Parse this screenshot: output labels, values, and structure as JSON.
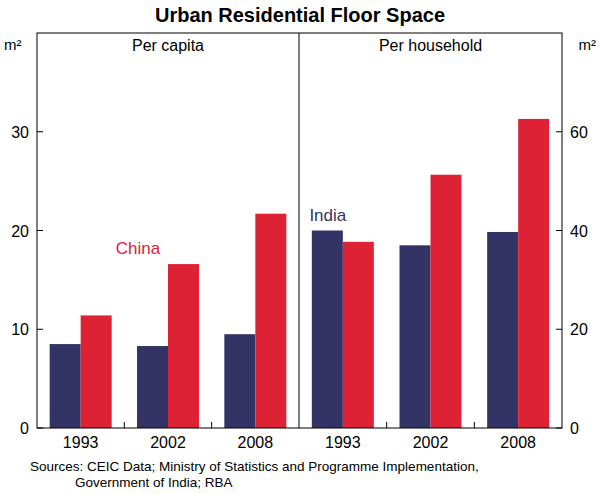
{
  "title": "Urban Residential Floor Space",
  "source": [
    "Sources: CEIC Data; Ministry of Statistics and Programme Implementation,",
    "Government of India; RBA"
  ],
  "chart_data": [
    {
      "type": "bar",
      "title": "Per capita",
      "y_label": "m²",
      "categories": [
        "1993",
        "2002",
        "2008"
      ],
      "series": [
        {
          "color": "#333366",
          "values": [
            8.5,
            8.3,
            9.5
          ]
        },
        {
          "name": "China",
          "color": "#dd2233",
          "values": [
            11.4,
            16.6,
            21.7
          ]
        }
      ],
      "ylim": [
        0,
        40
      ],
      "yticks": [
        0,
        10,
        20,
        30
      ],
      "grid": false
    },
    {
      "type": "bar",
      "title": "Per household",
      "y_label": "m²",
      "categories": [
        "1993",
        "2002",
        "2008"
      ],
      "series": [
        {
          "name": "India",
          "color": "#333366",
          "values": [
            40,
            37,
            39.7
          ],
          "axis": "y2"
        },
        {
          "color": "#dd2233",
          "values": [
            37.7,
            51.3,
            62.6
          ],
          "axis": "y2"
        }
      ],
      "y2lim": [
        0,
        80
      ],
      "y2ticks": [
        0,
        20,
        40,
        60
      ],
      "grid": false
    }
  ]
}
